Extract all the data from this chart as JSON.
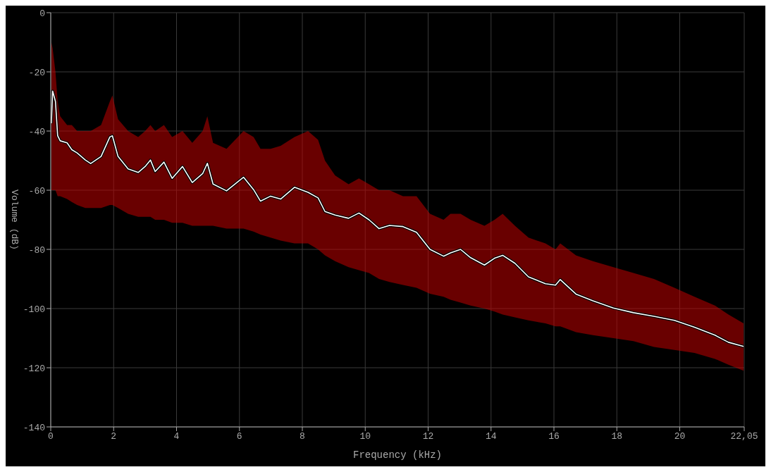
{
  "chart_data": {
    "type": "line",
    "xlabel": "Frequency (kHz)",
    "ylabel": "Volume (dB)",
    "xlim": [
      0,
      22.05
    ],
    "ylim": [
      -140,
      0
    ],
    "xticks": [
      0,
      2,
      4,
      6,
      8,
      10,
      12,
      14,
      16,
      18,
      20,
      {
        "value": 22.05,
        "label": "22,05"
      }
    ],
    "yticks": [
      0,
      -20,
      -40,
      -60,
      -80,
      -100,
      -120,
      -140
    ],
    "grid": true,
    "legend": false,
    "marker": "none",
    "line_style": "solid",
    "x": [
      0.02,
      0.06,
      0.15,
      0.22,
      0.3,
      0.52,
      0.67,
      0.84,
      1.1,
      1.27,
      1.6,
      1.88,
      1.96,
      2.14,
      2.46,
      2.78,
      3.0,
      3.17,
      3.32,
      3.6,
      3.86,
      4.19,
      4.5,
      4.83,
      4.98,
      5.16,
      5.59,
      6.13,
      6.45,
      6.67,
      6.99,
      7.31,
      7.75,
      8.18,
      8.5,
      8.72,
      9.04,
      9.47,
      9.8,
      10.12,
      10.44,
      10.77,
      11.2,
      11.63,
      12.06,
      12.49,
      12.71,
      13.03,
      13.35,
      13.79,
      14.11,
      14.37,
      14.76,
      15.19,
      15.73,
      16.05,
      16.2,
      16.7,
      17.24,
      17.89,
      18.53,
      19.18,
      19.83,
      20.47,
      21.12,
      21.55,
      22.03
    ],
    "series": [
      {
        "color": "#ffffff",
        "values": [
          -37.4,
          -26.5,
          -30,
          -41.6,
          -43.3,
          -44,
          -46.3,
          -47.4,
          -49.8,
          -51,
          -48.6,
          -42,
          -41.6,
          -48.6,
          -52.8,
          -54,
          -52,
          -49.8,
          -53.7,
          -50.5,
          -56,
          -52,
          -57.4,
          -54.4,
          -50.9,
          -57.9,
          -60.2,
          -55.6,
          -59.8,
          -63.7,
          -62,
          -63,
          -59,
          -60.7,
          -62.6,
          -67.2,
          -68.4,
          -69.5,
          -67.7,
          -70,
          -73,
          -71.9,
          -72.3,
          -74.2,
          -80,
          -82.3,
          -81.2,
          -80,
          -82.8,
          -85.3,
          -83,
          -82,
          -84.7,
          -89.3,
          -91.6,
          -92.1,
          -90.2,
          -95.1,
          -97.4,
          -99.8,
          -101.4,
          -102.6,
          -104,
          -106.3,
          -109,
          -111.4,
          -112.8
        ],
        "upper": [
          -10,
          -12,
          -20,
          -30,
          -35,
          -38,
          -38,
          -40,
          -40,
          -40,
          -38,
          -30,
          -28,
          -36,
          -40,
          -42,
          -40,
          -38,
          -40,
          -38,
          -42,
          -40,
          -44,
          -40,
          -35,
          -44,
          -46,
          -40,
          -42,
          -46,
          -46,
          -45,
          -42,
          -40,
          -43,
          -50,
          -55,
          -58,
          -56,
          -58,
          -60,
          -60,
          -62,
          -62,
          -68,
          -70,
          -68,
          -68,
          -70,
          -72,
          -70,
          -68,
          -72,
          -76,
          -78,
          -80,
          -78,
          -82,
          -84,
          -86,
          -88,
          -90,
          -93,
          -96,
          -99,
          -102,
          -105
        ],
        "lower": [
          -60,
          -60,
          -60,
          -62,
          -62,
          -63,
          -64,
          -65,
          -66,
          -66,
          -66,
          -65,
          -65,
          -66,
          -68,
          -69,
          -69,
          -69,
          -70,
          -70,
          -71,
          -71,
          -72,
          -72,
          -72,
          -72,
          -73,
          -73,
          -74,
          -75,
          -76,
          -77,
          -78,
          -78,
          -80,
          -82,
          -84,
          -86,
          -87,
          -88,
          -90,
          -91,
          -92,
          -93,
          -95,
          -96,
          -97,
          -98,
          -99,
          -100,
          -101,
          -102,
          -103,
          -104,
          -105,
          -106,
          -106,
          -108,
          -109,
          -110,
          -111,
          -113,
          -114,
          -115,
          -117,
          -119,
          -121
        ]
      }
    ]
  }
}
